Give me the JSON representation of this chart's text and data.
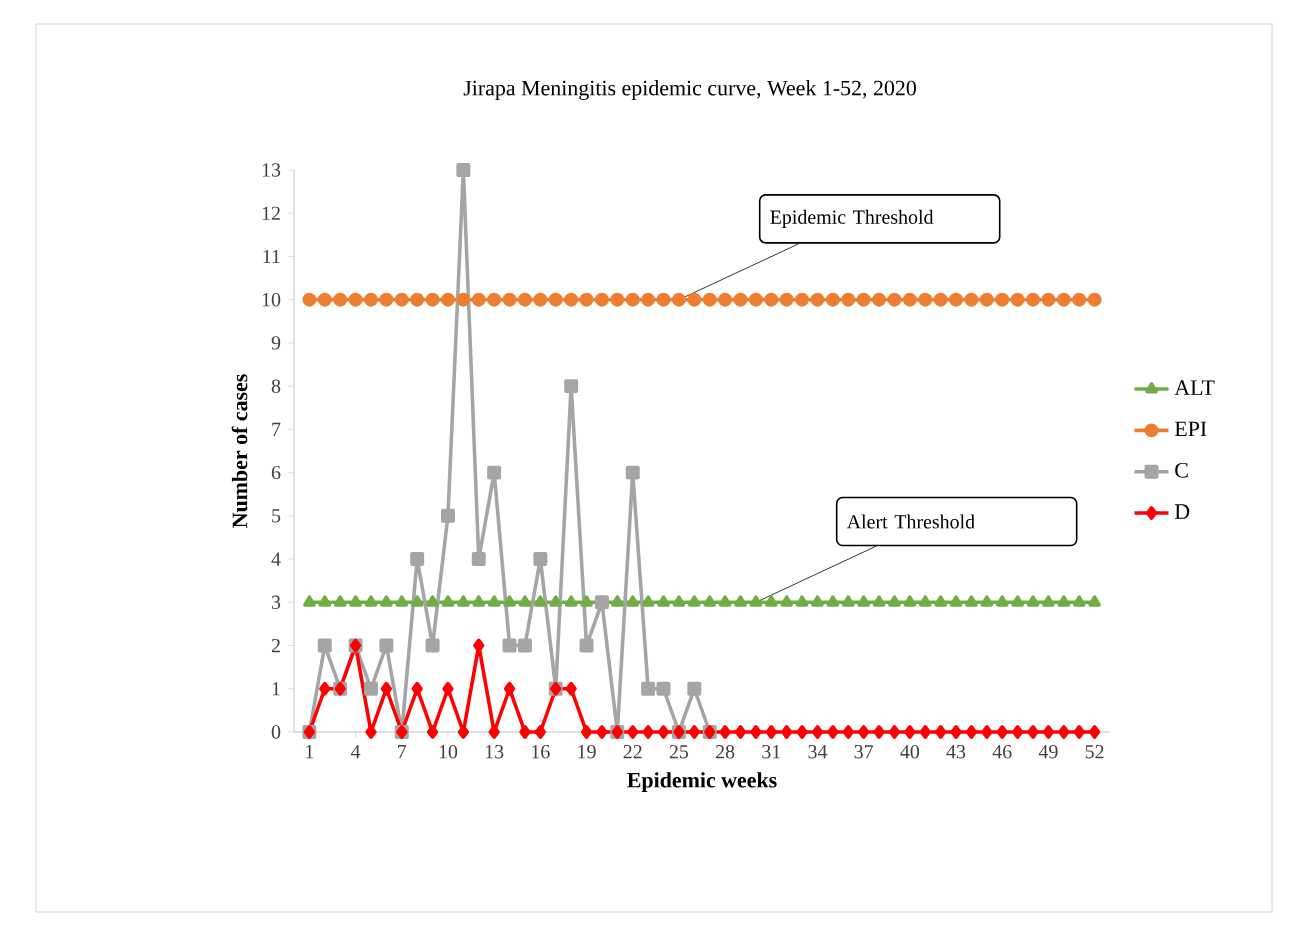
{
  "chart_data": {
    "type": "line",
    "title": "Jirapa Meningitis epidemic curve, Week 1-52, 2020",
    "xlabel": "Epidemic weeks",
    "ylabel": "Number of cases",
    "x": [
      1,
      2,
      3,
      4,
      5,
      6,
      7,
      8,
      9,
      10,
      11,
      12,
      13,
      14,
      15,
      16,
      17,
      18,
      19,
      20,
      21,
      22,
      23,
      24,
      25,
      26,
      27,
      28,
      29,
      30,
      31,
      32,
      33,
      34,
      35,
      36,
      37,
      38,
      39,
      40,
      41,
      42,
      43,
      44,
      45,
      46,
      47,
      48,
      49,
      50,
      51,
      52
    ],
    "xlim": [
      0,
      53
    ],
    "xticks": [
      1,
      4,
      7,
      10,
      13,
      16,
      19,
      22,
      25,
      28,
      31,
      34,
      37,
      40,
      43,
      46,
      49,
      52
    ],
    "ylim": [
      0,
      13
    ],
    "yticks": [
      0,
      1,
      2,
      3,
      4,
      5,
      6,
      7,
      8,
      9,
      10,
      11,
      12,
      13
    ],
    "legend": "right",
    "grid": false,
    "series": [
      {
        "name": "ALT",
        "color": "#70ad47",
        "marker": "triangle",
        "values": [
          3,
          3,
          3,
          3,
          3,
          3,
          3,
          3,
          3,
          3,
          3,
          3,
          3,
          3,
          3,
          3,
          3,
          3,
          3,
          3,
          3,
          3,
          3,
          3,
          3,
          3,
          3,
          3,
          3,
          3,
          3,
          3,
          3,
          3,
          3,
          3,
          3,
          3,
          3,
          3,
          3,
          3,
          3,
          3,
          3,
          3,
          3,
          3,
          3,
          3,
          3,
          3
        ]
      },
      {
        "name": "EPI",
        "color": "#ed7d31",
        "marker": "circle",
        "values": [
          10,
          10,
          10,
          10,
          10,
          10,
          10,
          10,
          10,
          10,
          10,
          10,
          10,
          10,
          10,
          10,
          10,
          10,
          10,
          10,
          10,
          10,
          10,
          10,
          10,
          10,
          10,
          10,
          10,
          10,
          10,
          10,
          10,
          10,
          10,
          10,
          10,
          10,
          10,
          10,
          10,
          10,
          10,
          10,
          10,
          10,
          10,
          10,
          10,
          10,
          10,
          10
        ]
      },
      {
        "name": "C",
        "color": "#a5a5a5",
        "marker": "square",
        "values": [
          0,
          2,
          1,
          2,
          1,
          2,
          0,
          4,
          2,
          5,
          13,
          4,
          6,
          2,
          2,
          4,
          1,
          8,
          2,
          3,
          0,
          6,
          1,
          1,
          0,
          1,
          0,
          null,
          null,
          null,
          null,
          null,
          null,
          null,
          null,
          null,
          null,
          null,
          null,
          null,
          null,
          null,
          null,
          null,
          null,
          null,
          null,
          null,
          null,
          null,
          null,
          null
        ]
      },
      {
        "name": "D",
        "color": "#ff0000",
        "marker": "diamond",
        "values": [
          0,
          1,
          1,
          2,
          0,
          1,
          0,
          1,
          0,
          1,
          0,
          2,
          0,
          1,
          0,
          0,
          1,
          1,
          0,
          0,
          0,
          0,
          0,
          0,
          0,
          0,
          0,
          0,
          0,
          0,
          0,
          0,
          0,
          0,
          0,
          0,
          0,
          0,
          0,
          0,
          0,
          0,
          0,
          0,
          0,
          0,
          0,
          0,
          0,
          0,
          0,
          0
        ]
      }
    ],
    "annotations": [
      {
        "text": "Epidemic Threshold",
        "x": 25,
        "y": 10
      },
      {
        "text": "Alert Threshold",
        "x": 30,
        "y": 3
      }
    ]
  }
}
